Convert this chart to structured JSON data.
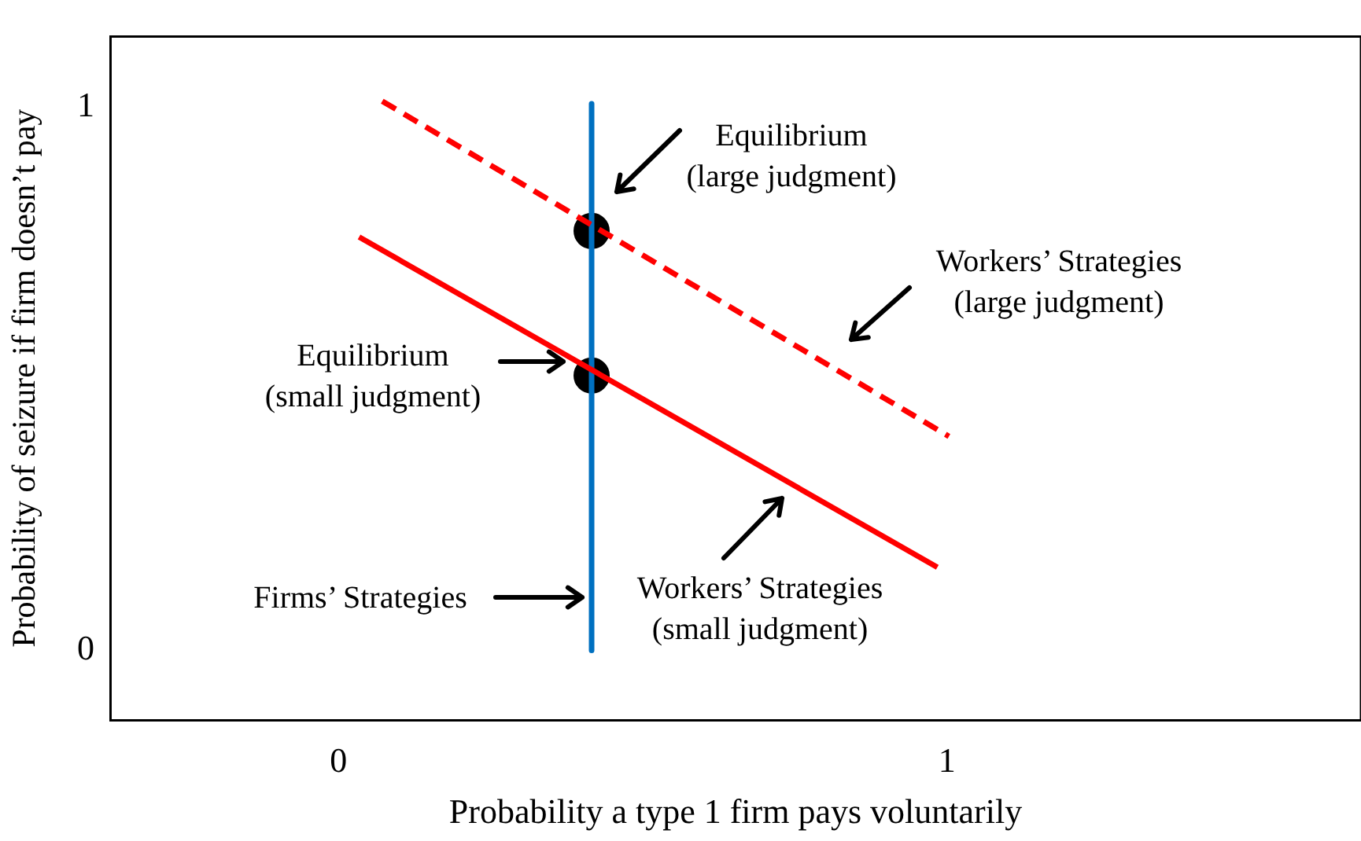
{
  "chart_data": {
    "type": "line",
    "xlabel": "Probability a type 1 firm pays voluntarily",
    "ylabel": "Probability of seizure if firm doesn’t pay",
    "xlim": [
      -0.375,
      1.68
    ],
    "ylim": [
      -0.128,
      1.13
    ],
    "xticks": [
      0,
      1
    ],
    "yticks": [
      0,
      1
    ],
    "grid": false,
    "series": [
      {
        "color": "#ff0000",
        "line_style": "dashed",
        "marker": "none",
        "x": [
          0.072,
          1.003
        ],
        "values": [
          1.011,
          0.394
        ]
      },
      {
        "color": "#ff0000",
        "line_style": "solid",
        "marker": "none",
        "x": [
          0.034,
          0.984
        ],
        "values": [
          0.761,
          0.153
        ]
      },
      {
        "color": "#0070c0",
        "line_style": "solid",
        "marker": "none",
        "x": [
          0.416,
          0.416
        ],
        "values": [
          1.006,
          0
        ]
      },
      {
        "type": "scatter",
        "color": "#000000",
        "marker": "circle",
        "x": [
          0.416,
          0.416
        ],
        "values": [
          0.772,
          0.506
        ]
      }
    ],
    "annotations": [
      "Equilibrium\n(large judgment)",
      "Workers’ Strategies\n(large judgment)",
      "Equilibrium\n(small judgment)",
      "Firms’ Strategies",
      "Workers’ Strategies\n(small judgment)"
    ]
  }
}
